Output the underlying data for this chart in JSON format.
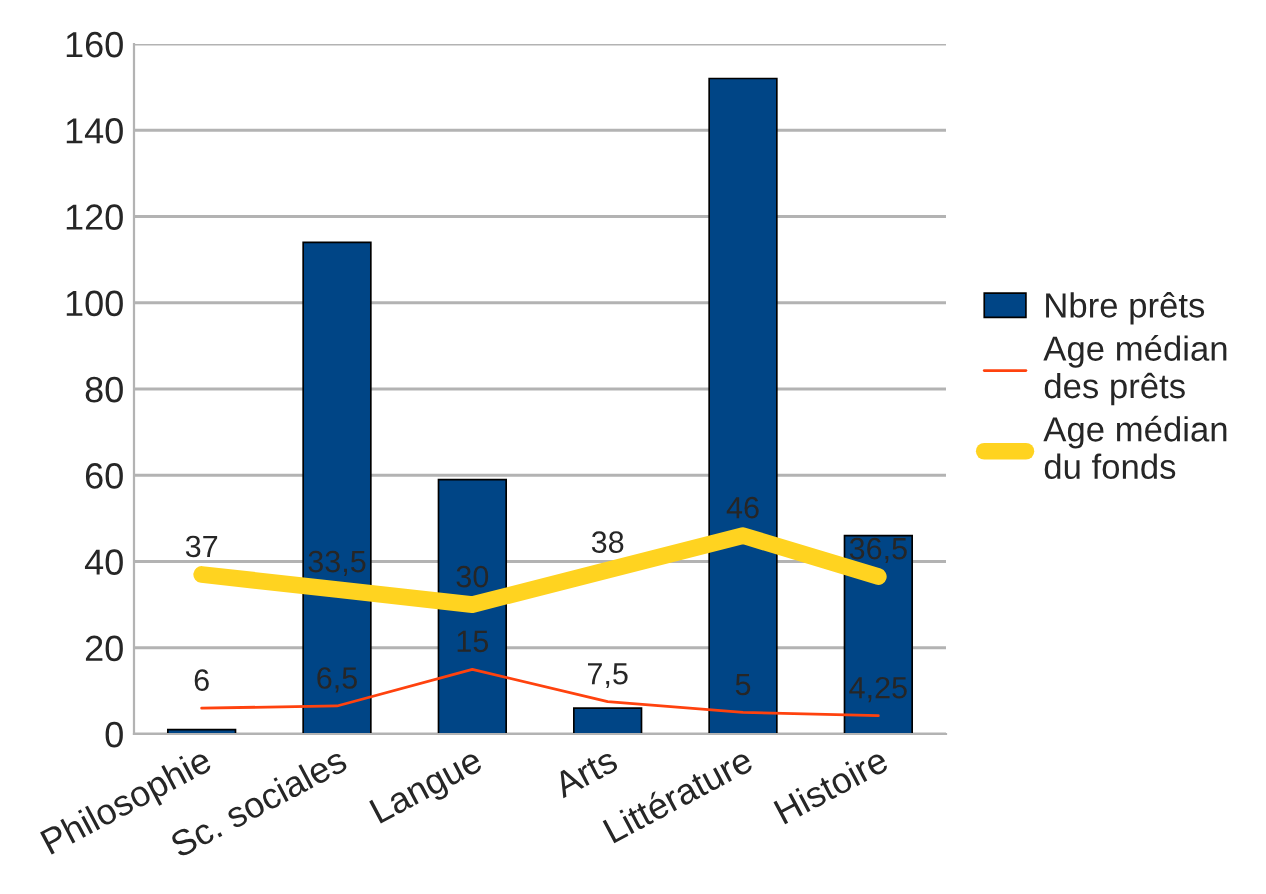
{
  "chart_data": {
    "type": "bar",
    "categories": [
      "Philosophie",
      "Sc. sociales",
      "Langue",
      "Arts",
      "Littérature",
      "Histoire"
    ],
    "series": [
      {
        "name": "Nbre prêts",
        "color": "#004586",
        "values": [
          1,
          114,
          59,
          6,
          152,
          46
        ]
      },
      {
        "name": "Age médian des prêts",
        "type": "line",
        "color": "#ff420e",
        "values": [
          6,
          6.5,
          15,
          7.5,
          5,
          4.25
        ],
        "value_labels": [
          "6",
          "6,5",
          "15",
          "7,5",
          "5",
          "4,25"
        ]
      },
      {
        "name": "Age médian du fonds",
        "type": "line",
        "color": "#ffd320",
        "values": [
          37,
          33.5,
          30,
          38,
          46,
          36.5
        ],
        "value_labels": [
          "37",
          "33,5",
          "30",
          "38",
          "46",
          "36,5"
        ]
      }
    ],
    "ylim": [
      0,
      160
    ],
    "yticks": [
      0,
      20,
      40,
      60,
      80,
      100,
      120,
      140,
      160
    ],
    "grid": "y",
    "legend": "right",
    "marker": "none",
    "line_style": "solid"
  }
}
